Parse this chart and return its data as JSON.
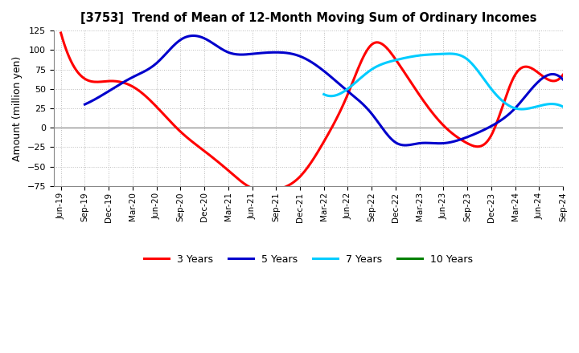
{
  "title": "[3753]  Trend of Mean of 12-Month Moving Sum of Ordinary Incomes",
  "ylabel": "Amount (million yen)",
  "ylim": [
    -75,
    125
  ],
  "yticks": [
    -75,
    -50,
    -25,
    0,
    25,
    50,
    75,
    100,
    125
  ],
  "background_color": "#ffffff",
  "grid_color": "#bbbbbb",
  "legend": [
    "3 Years",
    "5 Years",
    "7 Years",
    "10 Years"
  ],
  "legend_colors": [
    "#ff0000",
    "#0000cc",
    "#00ccff",
    "#008000"
  ],
  "x_labels": [
    "Jun-19",
    "Sep-19",
    "Dec-19",
    "Mar-20",
    "Jun-20",
    "Sep-20",
    "Dec-20",
    "Mar-21",
    "Jun-21",
    "Sep-21",
    "Dec-21",
    "Mar-22",
    "Jun-22",
    "Sep-22",
    "Dec-22",
    "Mar-23",
    "Jun-23",
    "Sep-23",
    "Dec-23",
    "Mar-24",
    "Jun-24",
    "Sep-24"
  ],
  "series_3yr": {
    "x": [
      0,
      1,
      2,
      3,
      4,
      5,
      6,
      7,
      8,
      9,
      10,
      11,
      12,
      13,
      14,
      15,
      16,
      17,
      18,
      19,
      20,
      21
    ],
    "y": [
      122,
      63,
      60,
      53,
      27,
      -5,
      -30,
      -55,
      -78,
      -80,
      -63,
      -18,
      43,
      107,
      88,
      42,
      3,
      -20,
      -10,
      68,
      70,
      68
    ]
  },
  "series_5yr": {
    "x": [
      1,
      2,
      3,
      4,
      5,
      6,
      7,
      8,
      9,
      10,
      11,
      12,
      13,
      14,
      15,
      16,
      17,
      18,
      19,
      20,
      21
    ],
    "y": [
      30,
      47,
      65,
      83,
      113,
      115,
      97,
      95,
      97,
      92,
      73,
      47,
      18,
      -19,
      -20,
      -20,
      -12,
      2,
      25,
      60,
      62
    ]
  },
  "series_7yr": {
    "x": [
      11,
      12,
      13,
      14,
      15,
      16,
      17,
      18,
      19,
      20,
      21
    ],
    "y": [
      43,
      50,
      75,
      87,
      93,
      95,
      88,
      50,
      25,
      28,
      27
    ]
  },
  "series_10yr": {
    "x": [],
    "y": []
  }
}
